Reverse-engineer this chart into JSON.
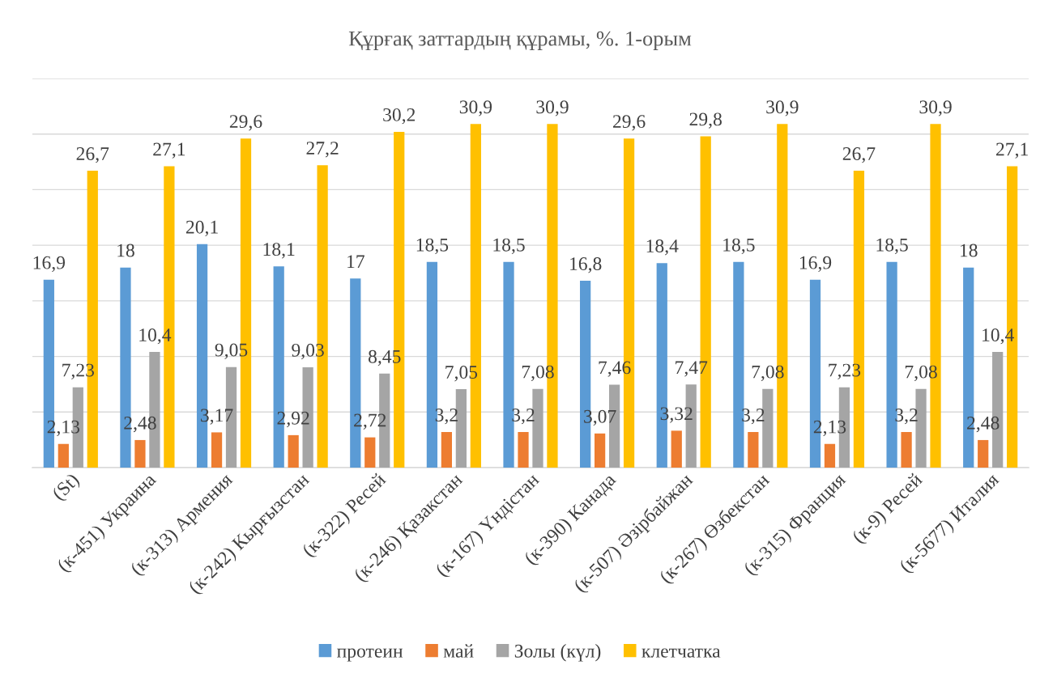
{
  "chart_data": {
    "type": "bar",
    "title": "Құрғақ заттардың құрамы, %. 1-орым",
    "categories": [
      "(St)",
      "(к-451) Украина",
      "(к-313) Армения",
      "(к-242) Кырғызстан",
      "(к-322) Ресей",
      "(к-246) Қазакстан",
      "(к-167) Үндістан",
      "(к-390) Канада",
      "(к-507) Әзірбайжан",
      "(к-267) Өзбекстан",
      "(к-315) Франция",
      "(к-9) Ресей",
      "(к-5677) Италия"
    ],
    "series": [
      {
        "name": "протеин",
        "color": "#5b9bd5",
        "values": [
          16.9,
          18,
          20.1,
          18.1,
          17,
          18.5,
          18.5,
          16.8,
          18.4,
          18.5,
          16.9,
          18.5,
          18
        ],
        "value_labels": [
          "16,9",
          "18",
          "20,1",
          "18,1",
          "17",
          "18,5",
          "18,5",
          "16,8",
          "18,4",
          "18,5",
          "16,9",
          "18,5",
          "18"
        ]
      },
      {
        "name": "май",
        "color": "#ed7d31",
        "values": [
          2.13,
          2.48,
          3.17,
          2.92,
          2.72,
          3.2,
          3.2,
          3.07,
          3.32,
          3.2,
          2.13,
          3.2,
          2.48
        ],
        "value_labels": [
          "2,13",
          "2,48",
          "3,17",
          "2,92",
          "2,72",
          "3,2",
          "3,2",
          "3,07",
          "3,32",
          "3,2",
          "2,13",
          "3,2",
          "2,48"
        ]
      },
      {
        "name": "Золы (күл)",
        "color": "#a5a5a5",
        "values": [
          7.23,
          10.4,
          9.05,
          9.03,
          8.45,
          7.05,
          7.08,
          7.46,
          7.47,
          7.08,
          7.23,
          7.08,
          10.4
        ],
        "value_labels": [
          "7,23",
          "10,4",
          "9,05",
          "9,03",
          "8,45",
          "7,05",
          "7,08",
          "7,46",
          "7,47",
          "7,08",
          "7,23",
          "7,08",
          "10,4"
        ]
      },
      {
        "name": "клетчатка",
        "color": "#ffc000",
        "values": [
          26.7,
          27.1,
          29.6,
          27.2,
          30.2,
          30.9,
          30.9,
          29.6,
          29.8,
          30.9,
          26.7,
          30.9,
          27.1
        ],
        "value_labels": [
          "26,7",
          "27,1",
          "29,6",
          "27,2",
          "30,2",
          "30,9",
          "30,9",
          "29,6",
          "29,8",
          "30,9",
          "26,7",
          "30,9",
          "27,1"
        ]
      }
    ],
    "ylim": [
      0,
      35
    ],
    "yticks": [
      {
        "value": 0,
        "label": null
      },
      {
        "value": 5,
        "label": null
      },
      {
        "value": 10,
        "label": null
      },
      {
        "value": 15,
        "label": null
      },
      {
        "value": 20,
        "label": null
      },
      {
        "value": 25,
        "label": null
      },
      {
        "value": 30,
        "label": null
      },
      {
        "value": 35,
        "label": null
      }
    ],
    "grid": "y",
    "legend": "bottom",
    "tick_labels": "x"
  }
}
